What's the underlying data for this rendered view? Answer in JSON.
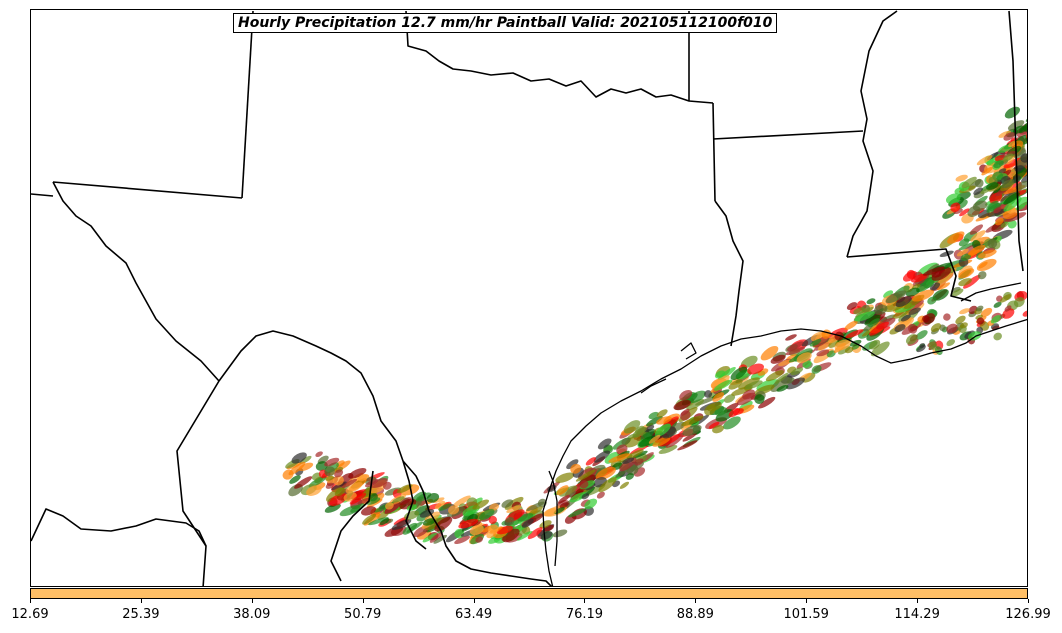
{
  "title": "Hourly Precipitation 12.7 mm/hr Paintball Valid: 202105112100f010",
  "colorbar": {
    "color": "#ffbf66",
    "ticks": [
      "12.69",
      "25.39",
      "38.09",
      "50.79",
      "63.49",
      "76.19",
      "88.89",
      "101.59",
      "114.29",
      "126.99"
    ]
  },
  "palette": [
    "#ff0000",
    "#ff7f00",
    "#ffa030",
    "#8b0000",
    "#006400",
    "#228b22",
    "#32cd32",
    "#556b2f",
    "#6b8e23",
    "#808000",
    "#2f2f2f",
    "#a52a2a"
  ],
  "map": {
    "region": "Texas / Gulf Coast",
    "boundaries": [
      "state-borders",
      "coastline",
      "mexico-border"
    ]
  }
}
